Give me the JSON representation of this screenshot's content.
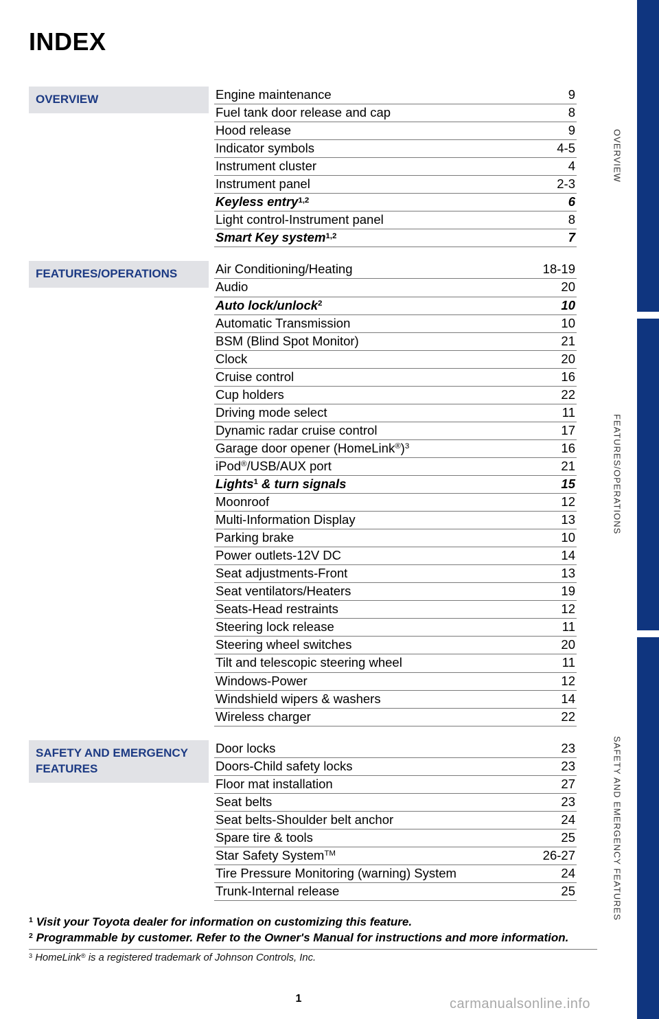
{
  "title": "INDEX",
  "page_number": "1",
  "watermark": "carmanualsonline.info",
  "side_tabs": [
    "OVERVIEW",
    "FEATURES/OPERATIONS",
    "SAFETY AND EMERGENCY FEATURES"
  ],
  "colors": {
    "section_header_bg": "#e1e2e6",
    "section_header_text": "#1c3a83",
    "side_blue": "#0f357f",
    "rule": "#7a7a7a"
  },
  "sections": [
    {
      "id": "overview",
      "header": "OVERVIEW",
      "entries": [
        {
          "label": "Engine maintenance",
          "page": "9",
          "bold": false,
          "sup": ""
        },
        {
          "label": "Fuel tank door release and cap",
          "page": "8",
          "bold": false,
          "sup": ""
        },
        {
          "label": "Hood release",
          "page": "9",
          "bold": false,
          "sup": ""
        },
        {
          "label": "Indicator symbols",
          "page": "4-5",
          "bold": false,
          "sup": ""
        },
        {
          "label": "Instrument cluster",
          "page": "4",
          "bold": false,
          "sup": ""
        },
        {
          "label": "Instrument panel",
          "page": "2-3",
          "bold": false,
          "sup": ""
        },
        {
          "label": "Keyless entry",
          "page": "6",
          "bold": true,
          "sup": "1,2"
        },
        {
          "label": "Light control-Instrument panel",
          "page": "8",
          "bold": false,
          "sup": ""
        },
        {
          "label": "Smart Key system",
          "page": "7",
          "bold": true,
          "sup": "1,2"
        }
      ]
    },
    {
      "id": "features",
      "header": "FEATURES/OPERATIONS",
      "entries": [
        {
          "label": "Air Conditioning/Heating",
          "page": "18-19",
          "bold": false,
          "sup": ""
        },
        {
          "label": "Audio",
          "page": "20",
          "bold": false,
          "sup": ""
        },
        {
          "label": "Auto lock/unlock",
          "page": "10",
          "bold": true,
          "sup": "2"
        },
        {
          "label": "Automatic Transmission",
          "page": "10",
          "bold": false,
          "sup": ""
        },
        {
          "label": "BSM (Blind Spot Monitor)",
          "page": "21",
          "bold": false,
          "sup": ""
        },
        {
          "label": "Clock",
          "page": "20",
          "bold": false,
          "sup": ""
        },
        {
          "label": "Cruise control",
          "page": "16",
          "bold": false,
          "sup": ""
        },
        {
          "label": "Cup holders",
          "page": "22",
          "bold": false,
          "sup": ""
        },
        {
          "label": "Driving mode select",
          "page": "11",
          "bold": false,
          "sup": ""
        },
        {
          "label": "Dynamic radar cruise control",
          "page": "17",
          "bold": false,
          "sup": ""
        },
        {
          "label": "Garage door opener (HomeLink",
          "page": "16",
          "bold": false,
          "sup": "",
          "trail": "®)³"
        },
        {
          "label": "iPod",
          "page": "21",
          "bold": false,
          "sup": "",
          "trail": "®/USB/AUX port"
        },
        {
          "label": "Lights",
          "page": "15",
          "bold": true,
          "sup": "1",
          "trail": " & turn signals"
        },
        {
          "label": "Moonroof",
          "page": "12",
          "bold": false,
          "sup": ""
        },
        {
          "label": "Multi-Information Display",
          "page": "13",
          "bold": false,
          "sup": ""
        },
        {
          "label": "Parking brake",
          "page": "10",
          "bold": false,
          "sup": ""
        },
        {
          "label": "Power outlets-12V DC",
          "page": "14",
          "bold": false,
          "sup": ""
        },
        {
          "label": "Seat adjustments-Front",
          "page": "13",
          "bold": false,
          "sup": ""
        },
        {
          "label": "Seat ventilators/Heaters",
          "page": "19",
          "bold": false,
          "sup": ""
        },
        {
          "label": "Seats-Head restraints",
          "page": "12",
          "bold": false,
          "sup": ""
        },
        {
          "label": "Steering lock release",
          "page": "11",
          "bold": false,
          "sup": ""
        },
        {
          "label": "Steering wheel switches",
          "page": "20",
          "bold": false,
          "sup": ""
        },
        {
          "label": "Tilt and telescopic steering wheel",
          "page": "11",
          "bold": false,
          "sup": ""
        },
        {
          "label": "Windows-Power",
          "page": "12",
          "bold": false,
          "sup": ""
        },
        {
          "label": "Windshield wipers & washers",
          "page": "14",
          "bold": false,
          "sup": ""
        },
        {
          "label": "Wireless charger",
          "page": "22",
          "bold": false,
          "sup": ""
        }
      ]
    },
    {
      "id": "safety",
      "header": "SAFETY AND EMERGENCY FEATURES",
      "entries": [
        {
          "label": "Door locks",
          "page": "23",
          "bold": false,
          "sup": ""
        },
        {
          "label": "Doors-Child safety locks",
          "page": "23",
          "bold": false,
          "sup": ""
        },
        {
          "label": "Floor mat installation",
          "page": "27",
          "bold": false,
          "sup": ""
        },
        {
          "label": "Seat belts",
          "page": "23",
          "bold": false,
          "sup": ""
        },
        {
          "label": "Seat belts-Shoulder belt anchor",
          "page": "24",
          "bold": false,
          "sup": ""
        },
        {
          "label": "Spare tire & tools",
          "page": "25",
          "bold": false,
          "sup": ""
        },
        {
          "label": "Star Safety System",
          "page": "26-27",
          "bold": false,
          "sup": "",
          "trail_sup": "TM"
        },
        {
          "label": "Tire Pressure Monitoring (warning) System",
          "page": "24",
          "bold": false,
          "sup": ""
        },
        {
          "label": "Trunk-Internal release",
          "page": "25",
          "bold": false,
          "sup": ""
        }
      ]
    }
  ],
  "footnotes": [
    {
      "mark": "1",
      "text": "Visit your Toyota dealer for information on customizing this feature."
    },
    {
      "mark": "2",
      "text": "Programmable by customer. Refer to the Owner's Manual for instructions and more information."
    }
  ],
  "trademark_note": {
    "mark": "3",
    "text_pre": "HomeLink",
    "reg": "®",
    "text_post": " is a registered trademark of Johnson Controls, Inc."
  }
}
